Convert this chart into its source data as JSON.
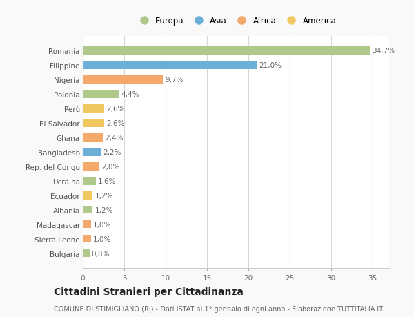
{
  "categories": [
    "Romania",
    "Filippine",
    "Nigeria",
    "Polonia",
    "Perù",
    "El Salvador",
    "Ghana",
    "Bangladesh",
    "Rep. del Congo",
    "Ucraina",
    "Ecuador",
    "Albania",
    "Madagascar",
    "Sierra Leone",
    "Bulgaria"
  ],
  "values": [
    34.7,
    21.0,
    9.7,
    4.4,
    2.6,
    2.6,
    2.4,
    2.2,
    2.0,
    1.6,
    1.2,
    1.2,
    1.0,
    1.0,
    0.8
  ],
  "labels": [
    "34,7%",
    "21,0%",
    "9,7%",
    "4,4%",
    "2,6%",
    "2,6%",
    "2,4%",
    "2,2%",
    "2,0%",
    "1,6%",
    "1,2%",
    "1,2%",
    "1,0%",
    "1,0%",
    "0,8%"
  ],
  "colors": [
    "#aec98a",
    "#6baed6",
    "#f4a96a",
    "#aec98a",
    "#f0c860",
    "#f0c860",
    "#f4a96a",
    "#6baed6",
    "#f4a96a",
    "#aec98a",
    "#f0c860",
    "#aec98a",
    "#f4a96a",
    "#f4a96a",
    "#aec98a"
  ],
  "legend_labels": [
    "Europa",
    "Asia",
    "Africa",
    "America"
  ],
  "legend_colors": [
    "#aec98a",
    "#6baed6",
    "#f4a96a",
    "#f0c860"
  ],
  "xlim": [
    0,
    37
  ],
  "xticks": [
    0,
    5,
    10,
    15,
    20,
    25,
    30,
    35
  ],
  "title": "Cittadini Stranieri per Cittadinanza",
  "subtitle": "COMUNE DI STIMIGLIANO (RI) - Dati ISTAT al 1° gennaio di ogni anno - Elaborazione TUTTITALIA.IT",
  "background_color": "#f9f9f9",
  "plot_background_color": "#ffffff",
  "grid_color": "#d8d8d8",
  "bar_height": 0.55,
  "label_fontsize": 7.5,
  "tick_fontsize": 7.5,
  "legend_fontsize": 8.5,
  "title_fontsize": 10,
  "subtitle_fontsize": 7.0
}
